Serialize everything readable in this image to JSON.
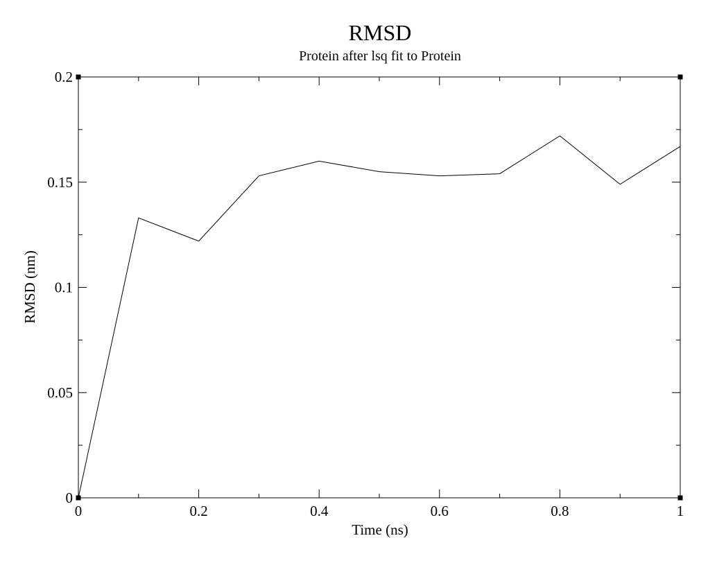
{
  "chart_data": {
    "type": "line",
    "title": "RMSD",
    "subtitle": "Protein after lsq fit to Protein",
    "xlabel": "Time (ns)",
    "ylabel": "RMSD (nm)",
    "xlim": [
      0,
      1
    ],
    "ylim": [
      0,
      0.2
    ],
    "x_ticks": [
      0,
      0.2,
      0.4,
      0.6,
      0.8,
      1
    ],
    "x_tick_labels": [
      "0",
      "0.2",
      "0.4",
      "0.6",
      "0.8",
      "1"
    ],
    "y_ticks": [
      0,
      0.05,
      0.1,
      0.15,
      0.2
    ],
    "y_tick_labels": [
      "0",
      "0.05",
      "0.1",
      "0.15",
      "0.2"
    ],
    "grid": false,
    "legend": "none",
    "series": [
      {
        "x": [
          0,
          0.1,
          0.2,
          0.3,
          0.4,
          0.5,
          0.6,
          0.7,
          0.8,
          0.9,
          1.0
        ],
        "values": [
          0,
          0.133,
          0.122,
          0.153,
          0.16,
          0.155,
          0.153,
          0.154,
          0.172,
          0.149,
          0.167
        ],
        "color": "#000000"
      }
    ]
  }
}
